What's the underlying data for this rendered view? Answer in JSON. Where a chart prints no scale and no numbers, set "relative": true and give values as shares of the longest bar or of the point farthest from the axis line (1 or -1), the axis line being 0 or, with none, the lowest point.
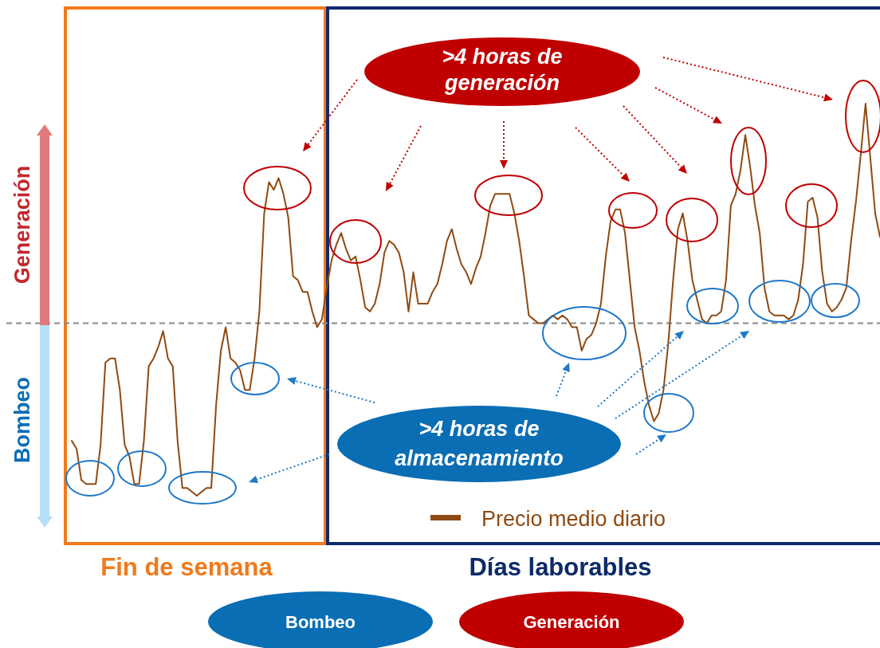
{
  "chart_data": {
    "type": "line",
    "relative": true,
    "legend": "bottom right",
    "categories": [
      null,
      null,
      null,
      null,
      null,
      null,
      null,
      null,
      null,
      null,
      null,
      null,
      null,
      null,
      null,
      null,
      null,
      null,
      null,
      null,
      null,
      null,
      null,
      null,
      null,
      null,
      null,
      null,
      null,
      null,
      null,
      null,
      null,
      null,
      null,
      null,
      null,
      null,
      null,
      null,
      null,
      null,
      null,
      null,
      null,
      null,
      null,
      null,
      null,
      null,
      null,
      null,
      null,
      null,
      null,
      null,
      null,
      null,
      null,
      null,
      null,
      null,
      null,
      null,
      null,
      null,
      null,
      null,
      null,
      null,
      null,
      null,
      null,
      null,
      null,
      null,
      null,
      null,
      null,
      null,
      null,
      null,
      null,
      null,
      null,
      null,
      null,
      null,
      null,
      null,
      null,
      null,
      null,
      null,
      null,
      null,
      null,
      null,
      null,
      null,
      null,
      null,
      null,
      null,
      null,
      null,
      null,
      null,
      null,
      null,
      null,
      null,
      null,
      null,
      null,
      null,
      null,
      null,
      null,
      null,
      null,
      null,
      null,
      null,
      null,
      null,
      null,
      null,
      null,
      null,
      null,
      null,
      null,
      null,
      null,
      null,
      null,
      null,
      null,
      null,
      null,
      null,
      null,
      null,
      null,
      null,
      null,
      null,
      null,
      null,
      null,
      null,
      null,
      null,
      null,
      null,
      null,
      null,
      null,
      null,
      null,
      null,
      null,
      null,
      null,
      null,
      null,
      null,
      null
    ],
    "series": [
      {
        "name": "Precio medio diario",
        "color": "#8f4a12",
        "values": [
          0.14,
          0.12,
          0.04,
          0.03,
          0.03,
          0.03,
          0.13,
          0.34,
          0.35,
          0.35,
          0.27,
          0.13,
          0.1,
          0.03,
          0.03,
          0.14,
          0.33,
          0.35,
          0.38,
          0.42,
          0.35,
          0.33,
          0.14,
          0.02,
          0.02,
          0.01,
          0,
          0.01,
          0.02,
          0.02,
          0.23,
          0.37,
          0.43,
          0.35,
          0.34,
          0.32,
          0.27,
          0.27,
          0.35,
          0.47,
          0.72,
          0.8,
          0.78,
          0.81,
          0.77,
          0.71,
          0.56,
          0.55,
          0.52,
          0.52,
          0.47,
          0.43,
          0.45,
          0.53,
          0.6,
          0.64,
          0.67,
          0.63,
          0.6,
          0.61,
          0.55,
          0.48,
          0.47,
          0.49,
          0.54,
          0.62,
          0.65,
          0.64,
          0.62,
          0.57,
          0.47,
          0.57,
          0.49,
          0.49,
          0.49,
          0.52,
          0.54,
          0.59,
          0.65,
          0.68,
          0.63,
          0.59,
          0.57,
          0.54,
          0.58,
          0.61,
          0.67,
          0.74,
          0.77,
          0.77,
          0.77,
          0.77,
          0.72,
          0.65,
          0.56,
          0.46,
          0.45,
          0.44,
          0.44,
          0.45,
          0.46,
          0.45,
          0.46,
          0.45,
          0.43,
          0.43,
          0.37,
          0.4,
          0.41,
          0.44,
          0.49,
          0.61,
          0.7,
          0.73,
          0.73,
          0.67,
          0.55,
          0.43,
          0.37,
          0.29,
          0.23,
          0.19,
          0.21,
          0.27,
          0.39,
          0.55,
          0.68,
          0.72,
          0.65,
          0.55,
          0.5,
          0.45,
          0.44,
          0.46,
          0.46,
          0.47,
          0.55,
          0.74,
          0.77,
          0.83,
          0.92,
          0.84,
          0.74,
          0.67,
          0.53,
          0.47,
          0.46,
          0.46,
          0.46,
          0.45,
          0.46,
          0.5,
          0.59,
          0.75,
          0.76,
          0.71,
          0.57,
          0.49,
          0.47,
          0.48,
          0.5,
          0.53,
          0.65,
          0.75,
          0.87,
          1,
          0.86,
          0.72,
          0.66
        ]
      }
    ],
    "ref_lines": [
      {
        "axis": "y",
        "value": 0.44,
        "color": "#888888",
        "line_style": "dashed"
      }
    ],
    "annotations": [
      ">4 horas de generación",
      ">4 horas de almacenamiento",
      "Generación",
      "Bombeo",
      "Bombeo",
      "Generación",
      "Fin de semana",
      "Días laborables"
    ]
  }
}
